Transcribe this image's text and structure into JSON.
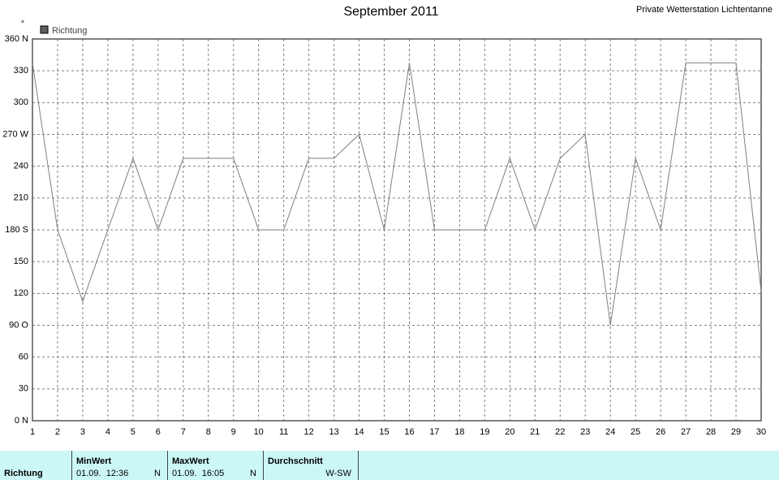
{
  "chart_data": {
    "type": "line",
    "title": "September 2011",
    "subtitle": "Private Wetterstation Lichtentanne",
    "y_label": "°",
    "grid": true,
    "x": [
      1,
      2,
      3,
      4,
      5,
      6,
      7,
      8,
      9,
      10,
      11,
      12,
      13,
      14,
      15,
      16,
      17,
      18,
      19,
      20,
      21,
      22,
      23,
      24,
      25,
      26,
      27,
      28,
      29,
      30
    ],
    "xlim": [
      1,
      30
    ],
    "xticks": [
      1,
      2,
      3,
      4,
      5,
      6,
      7,
      8,
      9,
      10,
      11,
      12,
      13,
      14,
      15,
      16,
      17,
      18,
      19,
      20,
      21,
      22,
      23,
      24,
      25,
      26,
      27,
      28,
      29,
      30
    ],
    "ylim": [
      0,
      360
    ],
    "yticks": [
      {
        "value": 0,
        "label": "0 N"
      },
      30,
      60,
      {
        "value": 90,
        "label": "90 O"
      },
      120,
      150,
      {
        "value": 180,
        "label": "180 S"
      },
      210,
      240,
      {
        "value": 270,
        "label": "270 W"
      },
      300,
      330,
      {
        "value": 360,
        "label": "360 N"
      }
    ],
    "series": [
      {
        "name": "Richtung",
        "color": "#808080",
        "values": [
          337.5,
          180,
          112.5,
          180,
          247.5,
          180,
          247.5,
          247.5,
          247.5,
          180,
          180,
          247.5,
          247.5,
          270,
          180,
          337.5,
          180,
          180,
          180,
          247.5,
          180,
          247.5,
          270,
          90,
          247.5,
          180,
          337.5,
          337.5,
          337.5,
          122
        ]
      }
    ]
  },
  "table": {
    "row_label": "Richtung",
    "columns": [
      {
        "header": "MinWert",
        "date": "01.09.  12:36",
        "value": "N"
      },
      {
        "header": "MaxWert",
        "date": "01.09.  16:05",
        "value": "N"
      },
      {
        "header": "Durchschnitt",
        "value": "W-SW"
      }
    ]
  }
}
